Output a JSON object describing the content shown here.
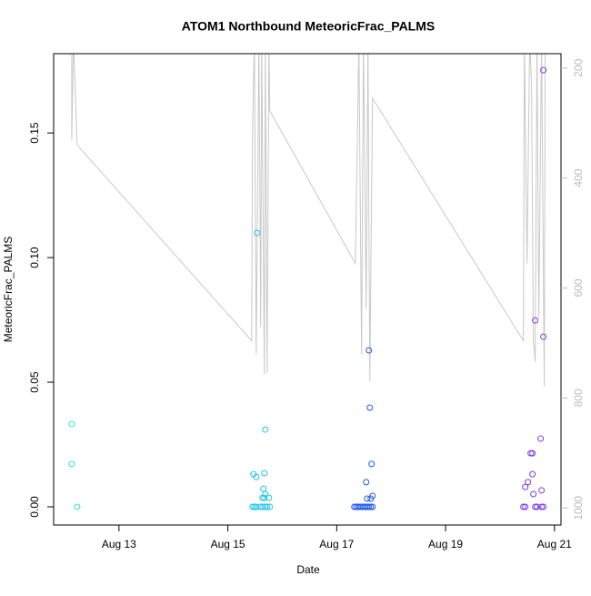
{
  "chart_data": {
    "type": "scatter",
    "title": "ATOM1 Northbound MeteoricFrac_PALMS",
    "x_label": "Date",
    "y_label": "MeteoricFrac_PALMS",
    "xlim": [
      11.8,
      21.12
    ],
    "xticks": [
      {
        "value": 13,
        "label": "Aug 13"
      },
      {
        "value": 15,
        "label": "Aug 15"
      },
      {
        "value": 17,
        "label": "Aug 17"
      },
      {
        "value": 19,
        "label": "Aug 19"
      },
      {
        "value": 21,
        "label": "Aug 21"
      }
    ],
    "ylim": [
      -0.0073,
      0.1818
    ],
    "yticks": [
      {
        "value": 0,
        "label": "0.00"
      },
      {
        "value": 0.05,
        "label": "0.05"
      },
      {
        "value": 0.1,
        "label": "0.10"
      },
      {
        "value": 0.15,
        "label": "0.15"
      }
    ],
    "y2lim": [
      1031,
      174
    ],
    "y2ticks": [
      200,
      400,
      600,
      800,
      1000
    ],
    "series": [
      {
        "color": "#33e3c0",
        "x": [
          12.132,
          12.132,
          12.232
        ],
        "values": [
          0.0332,
          0.0172,
          0
        ]
      },
      {
        "color": "#22c4e8",
        "x": [
          15.537,
          15.688,
          15.471,
          15.521,
          15.671,
          15.654,
          15.688,
          15.638,
          15.671,
          15.755,
          15.454,
          15.487,
          15.521,
          15.588,
          15.638,
          15.688,
          15.721,
          15.771
        ],
        "values": [
          0.1099,
          0.031,
          0.0131,
          0.012,
          0.0135,
          0.0073,
          0.0051,
          0.0036,
          0.0036,
          0.0036,
          0,
          0,
          0,
          0,
          0,
          0,
          0,
          0
        ]
      },
      {
        "color": "#1f5ae8",
        "x": [
          17.591,
          17.608,
          17.641,
          17.541,
          17.658,
          17.558,
          17.624,
          17.324,
          17.357,
          17.391,
          17.424,
          17.457,
          17.491,
          17.524,
          17.558,
          17.591,
          17.624,
          17.658
        ],
        "values": [
          0.0628,
          0.0398,
          0.0172,
          0.0099,
          0.0044,
          0.0033,
          0.0033,
          0,
          0,
          0,
          0,
          0,
          0,
          0,
          0,
          0,
          0,
          0
        ]
      },
      {
        "color": "#7a3be8",
        "x": [
          20.796,
          20.646,
          20.796,
          20.746,
          20.563,
          20.596,
          20.596,
          20.513,
          20.463,
          20.613,
          20.763,
          20.429,
          20.463,
          20.646,
          20.679,
          20.763,
          20.796
        ],
        "values": [
          0.1752,
          0.0748,
          0.0682,
          0.0274,
          0.0215,
          0.0215,
          0.0131,
          0.0099,
          0.008,
          0.0051,
          0.0066,
          0,
          0,
          0,
          0,
          0,
          0
        ]
      }
    ],
    "line": {
      "axis": "y2",
      "color": "#c8c8c8",
      "x": [
        12.132,
        12.132,
        12.165,
        12.232,
        15.437,
        15.454,
        15.487,
        15.521,
        15.571,
        15.604,
        15.621,
        15.671,
        15.688,
        15.721,
        15.755,
        15.771,
        17.341,
        17.374,
        17.407,
        17.457,
        17.491,
        17.541,
        17.574,
        17.608,
        17.658,
        20.429,
        20.446,
        20.496,
        20.546,
        20.579,
        20.613,
        20.646,
        20.679,
        20.713,
        20.763,
        20.796,
        20.813,
        20.83
      ],
      "values": [
        150,
        331,
        150,
        340,
        696,
        316,
        150,
        721,
        150,
        671,
        150,
        757,
        150,
        754,
        150,
        278,
        555,
        365,
        150,
        721,
        150,
        638,
        150,
        770,
        255,
        696,
        150,
        555,
        150,
        230,
        696,
        734,
        150,
        655,
        150,
        572,
        780,
        150
      ]
    }
  }
}
